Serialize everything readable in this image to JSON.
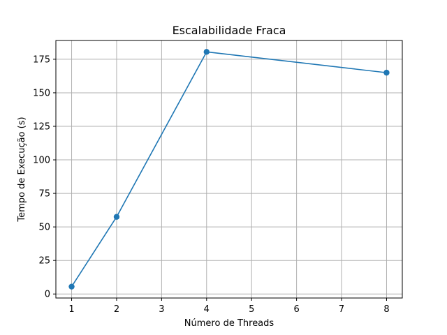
{
  "chart_data": {
    "type": "line",
    "title": "Escalabilidade Fraca",
    "xlabel": "Número de Threads",
    "ylabel": "Tempo de Execução (s)",
    "x": [
      1,
      2,
      4,
      8
    ],
    "series": [
      {
        "values": [
          5.5,
          57.5,
          180.5,
          165.0
        ]
      }
    ],
    "xlim": [
      0.65,
      8.35
    ],
    "ylim": [
      -3,
      189
    ],
    "xticks": [
      1,
      2,
      3,
      4,
      5,
      6,
      7,
      8
    ],
    "xtick_labels": [
      "1",
      "2",
      "3",
      "4",
      "5",
      "6",
      "7",
      "8"
    ],
    "yticks": [
      0,
      25,
      50,
      75,
      100,
      125,
      150,
      175
    ],
    "ytick_labels": [
      "0",
      "25",
      "50",
      "75",
      "100",
      "125",
      "150",
      "175"
    ],
    "grid": true,
    "marker": "circle",
    "line_color": "#1f77b4"
  }
}
